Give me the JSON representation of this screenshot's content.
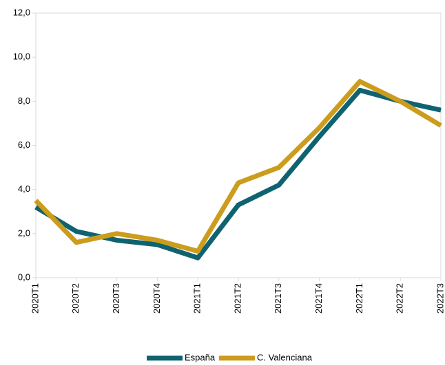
{
  "chart_data": {
    "type": "line",
    "categories": [
      "2020T1",
      "2020T2",
      "2020T3",
      "2020T4",
      "2021T1",
      "2021T2",
      "2021T3",
      "2021T4",
      "2022T1",
      "2022T2",
      "2022T3"
    ],
    "series": [
      {
        "name": "España",
        "color": "#0f6370",
        "values": [
          3.2,
          2.1,
          1.7,
          1.5,
          0.9,
          3.3,
          4.2,
          6.4,
          8.5,
          8.0,
          7.6
        ]
      },
      {
        "name": "C. Valenciana",
        "color": "#cc9c1c",
        "values": [
          3.5,
          1.6,
          2.0,
          1.7,
          1.2,
          4.3,
          5.0,
          6.8,
          8.9,
          8.0,
          6.9
        ]
      }
    ],
    "ylim": [
      0,
      12
    ],
    "yticks": [
      {
        "value": 0,
        "label": "0,0"
      },
      {
        "value": 2,
        "label": "2,0"
      },
      {
        "value": 4,
        "label": "4,0"
      },
      {
        "value": 6,
        "label": "6,0"
      },
      {
        "value": 8,
        "label": "8,0"
      },
      {
        "value": 10,
        "label": "10,0"
      },
      {
        "value": 12,
        "label": "12,0"
      }
    ],
    "legend": "bottom"
  }
}
